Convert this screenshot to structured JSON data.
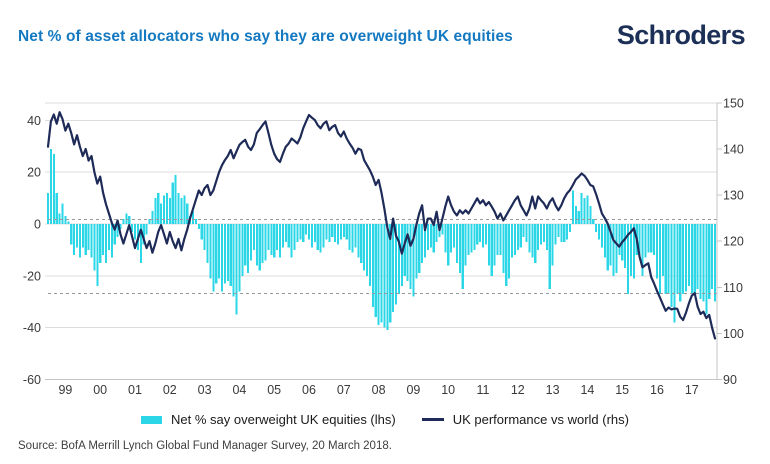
{
  "header": {
    "title": "Net % of asset allocators who say they are overweight UK equities",
    "title_color": "#1479c1",
    "logo_text": "Schroders",
    "logo_color": "#1c3057"
  },
  "legend": {
    "items": [
      {
        "label": "Net % say overweight UK equities (lhs)",
        "swatch": "bar",
        "color": "#2bd7e7"
      },
      {
        "label": "UK performance vs world (rhs)",
        "swatch": "line",
        "color": "#1e2b58"
      }
    ]
  },
  "source_note": "Source: BofA Merrill Lynch Global Fund Manager Survey, 20 March 2018.",
  "chart_data": {
    "type": "bar+line",
    "title": "Net % of asset allocators who say they are overweight UK equities",
    "x_range": {
      "start": "1999-01",
      "end": "2018-03",
      "frequency": "monthly"
    },
    "x_axis": {
      "year_labels": [
        "99",
        "00",
        "01",
        "02",
        "03",
        "04",
        "05",
        "06",
        "07",
        "08",
        "09",
        "10",
        "11",
        "12",
        "13",
        "14",
        "15",
        "16",
        "17"
      ]
    },
    "left_axis": {
      "ticks": [
        40,
        20,
        0,
        -20,
        -40,
        -60
      ],
      "gridline_values": [
        40,
        20,
        0,
        -20,
        -40
      ],
      "min": -60,
      "max": 47.5
    },
    "right_axis": {
      "ticks": [
        150,
        140,
        130,
        120,
        110,
        100,
        90
      ],
      "min": 90,
      "max": 150
    },
    "reference_lines_left": [
      1.8,
      -26.8
    ],
    "colors": {
      "bar": "#2bd7e7",
      "line": "#1e2b58",
      "grid": "#dcdcdc",
      "axis": "#c4c4c4",
      "dashed": "#999999",
      "tick_label": "#3a3a3a"
    },
    "series": [
      {
        "name": "Net % say overweight UK equities",
        "type": "bar",
        "axis": "left",
        "color": "#2bd7e7",
        "values": [
          12,
          29,
          27,
          12,
          4,
          8,
          3,
          1,
          -8,
          -12,
          -9,
          -13,
          -9,
          -12,
          -10,
          -13,
          -18,
          -24,
          -15,
          -12,
          -15,
          -10,
          -13,
          -8,
          -5,
          -2,
          2,
          4,
          3,
          -3,
          -6,
          -10,
          -15,
          -8,
          -4,
          2,
          5,
          10,
          12,
          8,
          11,
          12,
          10,
          16,
          19,
          12,
          10,
          11,
          8,
          3,
          5,
          2,
          -2,
          -6,
          -10,
          -15,
          -21,
          -26,
          -23,
          -21,
          -26,
          -23,
          -22,
          -24,
          -28,
          -35,
          -26,
          -20,
          -16,
          -19,
          -14,
          -10,
          -16,
          -18,
          -15,
          -14,
          -10,
          -12,
          -13,
          -10,
          -13,
          -9,
          -7,
          -9,
          -13,
          -10,
          -7,
          -6,
          -7,
          -4,
          -6,
          -9,
          -7,
          -10,
          -11,
          -9,
          -6,
          -7,
          -5,
          -7,
          -8,
          -6,
          -5,
          -6,
          -10,
          -11,
          -9,
          -13,
          -15,
          -18,
          -20,
          -24,
          -32,
          -36,
          -39,
          -38,
          -40,
          -41,
          -38,
          -34,
          -31,
          -27,
          -24,
          -20,
          -22,
          -25,
          -28,
          -21,
          -19,
          -15,
          -13,
          -10,
          -9,
          -11,
          -7,
          -5,
          -4,
          -11,
          -16,
          -11,
          -9,
          -15,
          -19,
          -25,
          -16,
          -12,
          -11,
          -10,
          -8,
          -7,
          -9,
          -8,
          -16,
          -20,
          -16,
          -12,
          -12,
          -19,
          -24,
          -21,
          -13,
          -12,
          -10,
          -9,
          -5,
          -7,
          -11,
          -13,
          -15,
          -10,
          -8,
          -7,
          -10,
          -25,
          -16,
          -8,
          -5,
          -7,
          -7,
          -6,
          -3,
          13,
          7,
          5,
          12,
          10,
          11,
          7,
          2,
          -3,
          -6,
          -9,
          -13,
          -18,
          -16,
          -20,
          -19,
          -12,
          -14,
          -17,
          -27,
          -20,
          -21,
          -12,
          -12,
          -20,
          -13,
          -11,
          -11,
          -12,
          -21,
          -27,
          -20,
          -27,
          -27,
          -32,
          -38,
          -27,
          -30,
          -27,
          -26,
          -24,
          -27,
          -27,
          -25,
          -29,
          -30,
          -35,
          -29,
          -25,
          -30
        ]
      },
      {
        "name": "UK performance vs world",
        "type": "line",
        "axis": "right",
        "color": "#1e2b58",
        "values": [
          140.5,
          146,
          147.5,
          145.5,
          148,
          146.5,
          144,
          145.5,
          143.5,
          141,
          143,
          140.5,
          138.5,
          140,
          137.5,
          138.5,
          135,
          132.5,
          134,
          130.5,
          128,
          126,
          124,
          122.5,
          124.5,
          121.5,
          119.5,
          121.5,
          123.5,
          121,
          118.5,
          120.5,
          122.5,
          120.5,
          118.5,
          120,
          117.5,
          119.5,
          122,
          123.5,
          121.5,
          119.5,
          122,
          120,
          118.5,
          120.5,
          118,
          120.5,
          122.5,
          125,
          127,
          129,
          131,
          130,
          131.5,
          132.2,
          130,
          131,
          133,
          135,
          136.5,
          137.6,
          138.5,
          139.8,
          138,
          139.5,
          140.9,
          141.5,
          142,
          140.5,
          139.8,
          141,
          143.5,
          144.3,
          145.2,
          146,
          143.5,
          140.9,
          139,
          137.8,
          137.2,
          139,
          140.5,
          141.2,
          142.3,
          141.8,
          141.2,
          142.5,
          144.5,
          146,
          147.4,
          146.8,
          146.3,
          145.2,
          144.5,
          145.5,
          146,
          144.1,
          144.8,
          145.2,
          143.5,
          142.7,
          143.8,
          142.3,
          141.2,
          140.3,
          139,
          140.1,
          139.8,
          137.6,
          136.5,
          135.4,
          134,
          132.2,
          133.3,
          130.5,
          127,
          123,
          120.5,
          124.9,
          121.2,
          119.9,
          117.3,
          119.5,
          121.5,
          119,
          120.5,
          123.5,
          126,
          127.8,
          122.4,
          124.9,
          124.9,
          123.5,
          126.4,
          122.4,
          124.9,
          127.5,
          129.7,
          127.8,
          126.4,
          125.6,
          126.7,
          126,
          126.7,
          126,
          127.1,
          128.2,
          129.3,
          128.2,
          128.9,
          127.8,
          128.5,
          127.5,
          126.4,
          124.9,
          126,
          124.5,
          125.6,
          126.7,
          127.8,
          128.9,
          129.7,
          127.8,
          126.7,
          125.6,
          127.1,
          129.7,
          127.1,
          129.7,
          128.9,
          128.2,
          127.1,
          128.5,
          129.3,
          127.8,
          126.7,
          127.8,
          129.3,
          130.4,
          131.1,
          132.2,
          133.4,
          134,
          134.7,
          134.2,
          133.3,
          132.2,
          131.9,
          130.2,
          128.2,
          126,
          125,
          123.8,
          122,
          120.2,
          119.5,
          118.8,
          119.8,
          120.5,
          121.4,
          122,
          122.8,
          120.5,
          116.6,
          114.3,
          114.8,
          115.2,
          112.2,
          110.8,
          109.2,
          107.8,
          106.3,
          104.9,
          105.6,
          105.2,
          105.4,
          105.3,
          103.6,
          102.9,
          104.5,
          106.5,
          108.2,
          108.7,
          105.8,
          104.2,
          104.7,
          103.3,
          104,
          101.2,
          98.9
        ]
      }
    ]
  }
}
